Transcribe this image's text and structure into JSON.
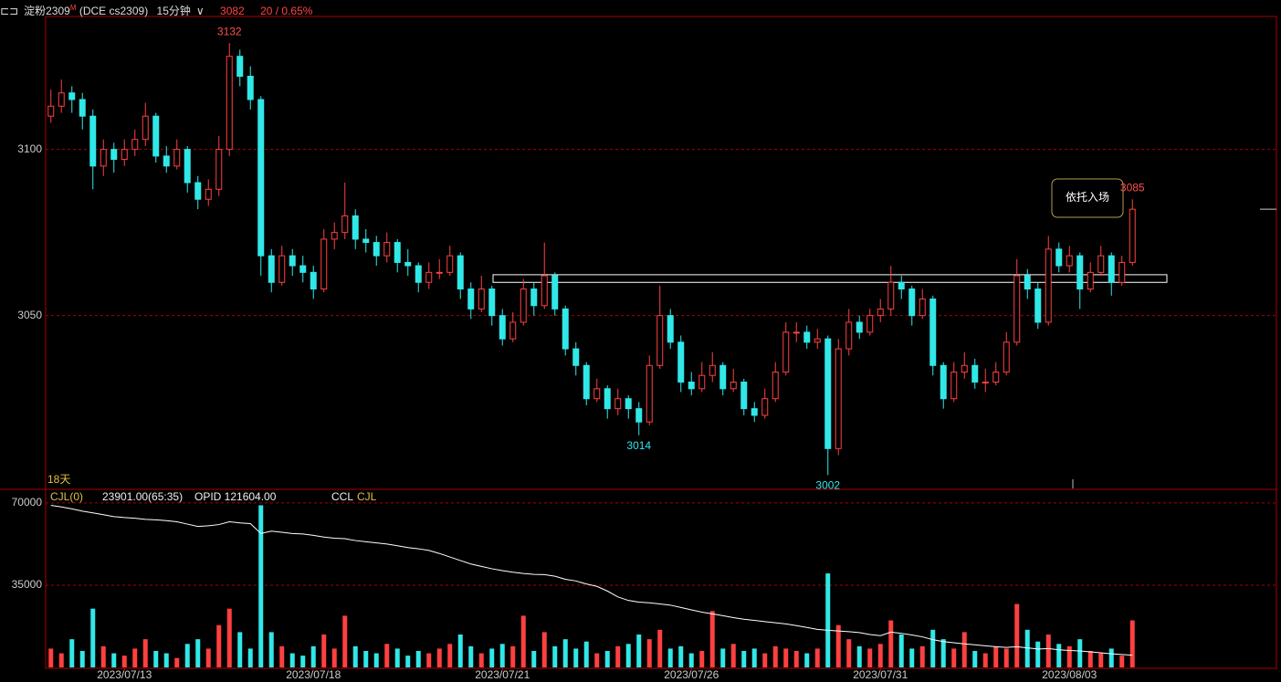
{
  "header": {
    "icon": "⊏⊐",
    "symbol": "淀粉2309",
    "market_flag": "M",
    "code": "(DCE cs2309)",
    "period": "15分钟",
    "change": "20 / 0.65%"
  },
  "chart_data": {
    "type": "candlestick",
    "up_color": "#ff4040",
    "down_color": "#30e8e8",
    "ylim": [
      2998,
      3140
    ],
    "yticks": [
      3050,
      3100
    ],
    "grid": true,
    "xticks": [
      {
        "value": 7,
        "label": "2023/07/13"
      },
      {
        "value": 25,
        "label": "2023/07/18"
      },
      {
        "value": 43,
        "label": "2023/07/21"
      },
      {
        "value": 61,
        "label": "2023/07/26"
      },
      {
        "value": 79,
        "label": "2023/07/31"
      },
      {
        "value": 97,
        "label": "2023/08/03"
      }
    ],
    "span_label": "18天",
    "callout": "依托入场",
    "zone": [
      3060,
      3062.3
    ],
    "ohlc": [
      [
        3110,
        3118,
        3108,
        3113
      ],
      [
        3113,
        3121,
        3111,
        3117
      ],
      [
        3117,
        3119,
        3111,
        3115
      ],
      [
        3115,
        3117,
        3106,
        3110
      ],
      [
        3110,
        3112,
        3088,
        3095
      ],
      [
        3095,
        3103,
        3092,
        3100
      ],
      [
        3100,
        3102,
        3093,
        3097
      ],
      [
        3097,
        3103,
        3095,
        3100
      ],
      [
        3100,
        3106,
        3098,
        3103
      ],
      [
        3103,
        3114,
        3101,
        3110
      ],
      [
        3110,
        3111,
        3096,
        3098
      ],
      [
        3098,
        3101,
        3093,
        3095
      ],
      [
        3095,
        3103,
        3094,
        3100
      ],
      [
        3100,
        3101,
        3087,
        3090
      ],
      [
        3090,
        3092,
        3082,
        3085
      ],
      [
        3085,
        3091,
        3083,
        3088
      ],
      [
        3088,
        3104,
        3086,
        3100
      ],
      [
        3100,
        3132,
        3098,
        3128
      ],
      [
        3128,
        3130,
        3119,
        3122
      ],
      [
        3122,
        3125,
        3112,
        3115
      ],
      [
        3115,
        3116,
        3062,
        3068
      ],
      [
        3068,
        3070,
        3057,
        3060
      ],
      [
        3060,
        3071,
        3059,
        3068
      ],
      [
        3068,
        3070,
        3062,
        3065
      ],
      [
        3065,
        3068,
        3060,
        3063
      ],
      [
        3063,
        3065,
        3055,
        3058
      ],
      [
        3058,
        3076,
        3057,
        3073
      ],
      [
        3073,
        3078,
        3070,
        3075
      ],
      [
        3075,
        3090,
        3073,
        3080
      ],
      [
        3080,
        3082,
        3070,
        3073
      ],
      [
        3073,
        3076,
        3069,
        3072
      ],
      [
        3072,
        3074,
        3065,
        3068
      ],
      [
        3068,
        3075,
        3066,
        3072
      ],
      [
        3072,
        3073,
        3063,
        3066
      ],
      [
        3066,
        3070,
        3062,
        3065
      ],
      [
        3065,
        3066,
        3057,
        3060
      ],
      [
        3060,
        3066,
        3058,
        3063
      ],
      [
        3063,
        3067,
        3061,
        3063
      ],
      [
        3063,
        3071,
        3062,
        3068
      ],
      [
        3068,
        3069,
        3055,
        3058
      ],
      [
        3058,
        3060,
        3049,
        3052
      ],
      [
        3052,
        3062,
        3051,
        3058
      ],
      [
        3058,
        3059,
        3047,
        3050
      ],
      [
        3050,
        3052,
        3041,
        3043
      ],
      [
        3043,
        3051,
        3042,
        3048
      ],
      [
        3048,
        3061,
        3047,
        3058
      ],
      [
        3058,
        3060,
        3050,
        3053
      ],
      [
        3053,
        3072,
        3052,
        3062
      ],
      [
        3062,
        3063,
        3050,
        3052
      ],
      [
        3052,
        3053,
        3038,
        3040
      ],
      [
        3040,
        3042,
        3032,
        3035
      ],
      [
        3035,
        3036,
        3023,
        3025
      ],
      [
        3025,
        3031,
        3024,
        3028
      ],
      [
        3028,
        3029,
        3019,
        3022
      ],
      [
        3022,
        3028,
        3020,
        3025
      ],
      [
        3025,
        3026,
        3019,
        3022
      ],
      [
        3022,
        3024,
        3014,
        3018
      ],
      [
        3018,
        3038,
        3017,
        3035
      ],
      [
        3035,
        3059,
        3034,
        3050
      ],
      [
        3050,
        3052,
        3040,
        3042
      ],
      [
        3042,
        3044,
        3027,
        3030
      ],
      [
        3030,
        3033,
        3026,
        3028
      ],
      [
        3028,
        3036,
        3027,
        3032
      ],
      [
        3032,
        3039,
        3030,
        3035
      ],
      [
        3035,
        3036,
        3026,
        3028
      ],
      [
        3028,
        3034,
        3027,
        3030
      ],
      [
        3030,
        3031,
        3020,
        3022
      ],
      [
        3022,
        3024,
        3018,
        3020
      ],
      [
        3020,
        3028,
        3019,
        3025
      ],
      [
        3025,
        3036,
        3024,
        3033
      ],
      [
        3033,
        3048,
        3032,
        3045
      ],
      [
        3045,
        3048,
        3042,
        3045
      ],
      [
        3045,
        3047,
        3040,
        3042
      ],
      [
        3042,
        3046,
        3040,
        3043
      ],
      [
        3043,
        3044,
        3002,
        3010
      ],
      [
        3010,
        3043,
        3008,
        3040
      ],
      [
        3040,
        3052,
        3038,
        3048
      ],
      [
        3048,
        3050,
        3043,
        3045
      ],
      [
        3045,
        3052,
        3044,
        3050
      ],
      [
        3050,
        3055,
        3048,
        3052
      ],
      [
        3052,
        3065,
        3050,
        3060
      ],
      [
        3060,
        3062,
        3055,
        3058
      ],
      [
        3058,
        3059,
        3047,
        3050
      ],
      [
        3050,
        3058,
        3049,
        3055
      ],
      [
        3055,
        3056,
        3032,
        3035
      ],
      [
        3035,
        3036,
        3022,
        3025
      ],
      [
        3025,
        3036,
        3024,
        3033
      ],
      [
        3033,
        3039,
        3031,
        3035
      ],
      [
        3035,
        3037,
        3028,
        3030
      ],
      [
        3030,
        3034,
        3027,
        3030
      ],
      [
        3030,
        3036,
        3029,
        3033
      ],
      [
        3033,
        3045,
        3032,
        3042
      ],
      [
        3042,
        3067,
        3041,
        3062
      ],
      [
        3062,
        3064,
        3055,
        3058
      ],
      [
        3058,
        3060,
        3046,
        3048
      ],
      [
        3048,
        3074,
        3047,
        3070
      ],
      [
        3070,
        3072,
        3063,
        3065
      ],
      [
        3065,
        3071,
        3063,
        3068
      ],
      [
        3068,
        3069,
        3052,
        3058
      ],
      [
        3058,
        3066,
        3057,
        3063
      ],
      [
        3063,
        3071,
        3062,
        3068
      ],
      [
        3068,
        3069,
        3056,
        3060
      ],
      [
        3060,
        3068,
        3059,
        3066
      ],
      [
        3066,
        3085,
        3065,
        3082
      ]
    ],
    "volume_pane": {
      "indicator": "CJL(0)",
      "stat": "23901.00(65:35)",
      "opid": "OPID 121604.00",
      "legend": [
        "CCL",
        "CJL"
      ],
      "oi_color": "#ffffff",
      "ylim": [
        0,
        75400
      ],
      "yticks": [
        35000,
        70000
      ],
      "volume": [
        8000,
        6000,
        12000,
        7000,
        25000,
        9000,
        6000,
        5000,
        8000,
        12000,
        7000,
        6000,
        4000,
        10000,
        12000,
        8000,
        18000,
        25000,
        15000,
        8000,
        69000,
        15000,
        9000,
        6000,
        5000,
        9000,
        14000,
        8000,
        22000,
        9000,
        7000,
        6000,
        10000,
        8000,
        5000,
        7000,
        6000,
        8000,
        10000,
        14000,
        9000,
        6000,
        8000,
        10000,
        9000,
        22000,
        7000,
        15000,
        9000,
        12000,
        8000,
        11000,
        6000,
        7000,
        9000,
        10000,
        14000,
        12000,
        16000,
        8000,
        9000,
        6000,
        7000,
        24000,
        8000,
        10000,
        7000,
        8000,
        6000,
        9000,
        8000,
        7000,
        6000,
        8000,
        40000,
        18000,
        12000,
        9000,
        8000,
        10000,
        20000,
        14000,
        8000,
        9000,
        16000,
        12000,
        8000,
        15000,
        7000,
        6000,
        9000,
        8000,
        27000,
        16000,
        11000,
        14000,
        10000,
        9000,
        12000,
        7000,
        6000,
        8000,
        5000,
        20000
      ],
      "open_interest": [
        69000,
        68300,
        67500,
        66500,
        65800,
        65000,
        64200,
        63800,
        63500,
        63000,
        62800,
        62500,
        62000,
        61000,
        60000,
        60300,
        60800,
        62000,
        61500,
        61200,
        57000,
        58000,
        57500,
        57000,
        56800,
        56200,
        55500,
        55000,
        54800,
        54000,
        53500,
        53000,
        52500,
        51800,
        51000,
        50500,
        49800,
        48500,
        47000,
        45500,
        44000,
        43000,
        42000,
        41200,
        40500,
        40000,
        39600,
        39500,
        38800,
        37500,
        36800,
        35500,
        34500,
        32500,
        30000,
        28500,
        27800,
        27500,
        27000,
        26500,
        25500,
        24500,
        23500,
        22800,
        22000,
        21200,
        20500,
        20000,
        19500,
        19000,
        18500,
        17800,
        17000,
        16200,
        15800,
        15500,
        15200,
        14800,
        14000,
        13500,
        15000,
        14500,
        13800,
        13000,
        11800,
        11000,
        10500,
        10000,
        9600,
        9200,
        8800,
        8500,
        8800,
        8300,
        7800,
        8000,
        7500,
        7200,
        7000,
        6600,
        6200,
        5800,
        5500,
        5200
      ]
    }
  }
}
